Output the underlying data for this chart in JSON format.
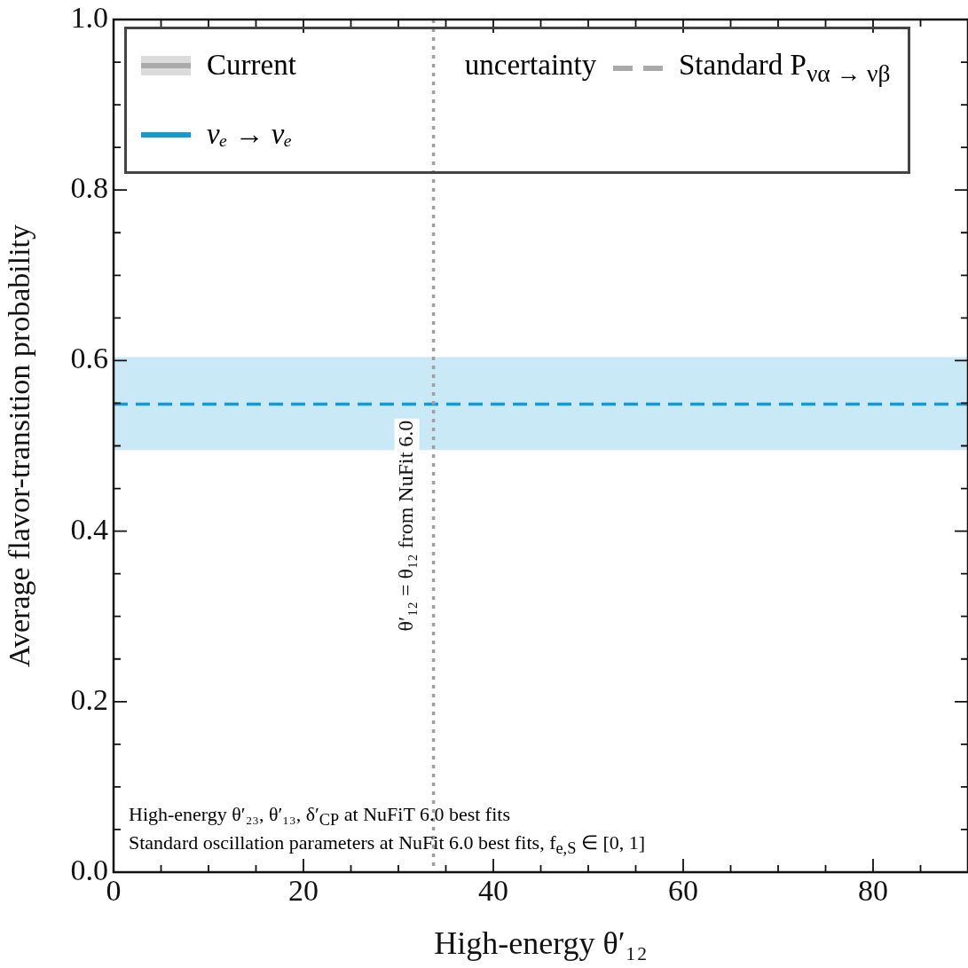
{
  "chart_data": {
    "type": "line",
    "xlabel": "High-energy θ′₁₂",
    "ylabel": "Average flavor-transition probability",
    "xlim": [
      0,
      90
    ],
    "ylim": [
      0,
      1
    ],
    "xticks": [
      0,
      {
        "value": 5,
        "label": null
      },
      20,
      {
        "value": 10,
        "label": null
      },
      {
        "value": 15,
        "label": null
      },
      {
        "value": 25,
        "label": null
      },
      {
        "value": 30,
        "label": null
      },
      {
        "value": 35,
        "label": null
      },
      40,
      {
        "value": 45,
        "label": null
      },
      {
        "value": 50,
        "label": null
      },
      {
        "value": 55,
        "label": null
      },
      60,
      {
        "value": 65,
        "label": null
      },
      {
        "value": 70,
        "label": null
      },
      {
        "value": 75,
        "label": null
      },
      80,
      {
        "value": 85,
        "label": null
      }
    ],
    "yticks": [
      {
        "value": 0,
        "label": "0.0"
      },
      {
        "value": 0.05,
        "label": null
      },
      {
        "value": 0.1,
        "label": null
      },
      {
        "value": 0.15,
        "label": null
      },
      {
        "value": 0.2,
        "label": "0.2"
      },
      {
        "value": 0.25,
        "label": null
      },
      {
        "value": 0.3,
        "label": null
      },
      {
        "value": 0.35,
        "label": null
      },
      {
        "value": 0.4,
        "label": "0.4"
      },
      {
        "value": 0.45,
        "label": null
      },
      {
        "value": 0.5,
        "label": null
      },
      {
        "value": 0.55,
        "label": null
      },
      {
        "value": 0.6,
        "label": "0.6"
      },
      {
        "value": 0.65,
        "label": null
      },
      {
        "value": 0.7,
        "label": null
      },
      {
        "value": 0.75,
        "label": null
      },
      {
        "value": 0.8,
        "label": "0.8"
      },
      {
        "value": 0.85,
        "label": null
      },
      {
        "value": 0.9,
        "label": null
      },
      {
        "value": 0.95,
        "label": null
      },
      {
        "value": 1,
        "label": "1.0"
      }
    ],
    "series": [
      {
        "name": "νₑ → νₑ",
        "color": "#0c9ddc",
        "x": [
          0,
          90
        ],
        "values": [
          0.549,
          0.549
        ],
        "lower": [
          0.495,
          0.495
        ],
        "upper": [
          0.604,
          0.604
        ]
      }
    ],
    "line_style": "dashed",
    "legend": "top",
    "ref_lines": [
      {
        "axis": "x",
        "value": 33.7,
        "label": "θ′₁₂ = θ₁₂ from NuFit 6.0",
        "color": "#a0a0a0",
        "line_style": "dotted"
      }
    ],
    "annotations": [
      "Current uncertainty",
      "Standard P$_{να → νβ}$",
      "High-energy θ′₂₃, θ′₁₃, δ′$_{CP}$ at NuFiT 6.0 best fits",
      "Standard oscillation parameters at NuFit 6.0 best fits, f$_{e,S}$ ∈ [0, 1]"
    ]
  }
}
